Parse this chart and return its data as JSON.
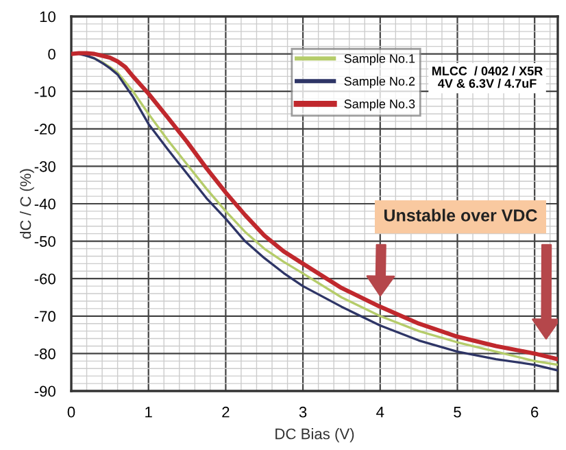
{
  "chart_data": {
    "type": "line",
    "xlabel": "DC Bias (V)",
    "ylabel": "dC / C (%)",
    "x": [
      0,
      0.1,
      0.2,
      0.3,
      0.4,
      0.5,
      0.6,
      0.7,
      0.8,
      1.0,
      1.25,
      1.5,
      1.75,
      2.0,
      2.25,
      2.5,
      2.75,
      3.0,
      3.5,
      4.0,
      4.5,
      5.0,
      5.5,
      6.0,
      6.3
    ],
    "series": [
      {
        "name": "Sample No.1",
        "color": "#b5cc6a",
        "values": [
          null,
          null,
          -0.5,
          -1.2,
          -2.2,
          -3.5,
          -5,
          -7.5,
          -10,
          -16,
          -23,
          -29.5,
          -36,
          -42,
          -47.5,
          -52,
          -55.5,
          -58.6,
          -65,
          -70,
          -74,
          -77,
          -79.5,
          -82,
          -83
        ]
      },
      {
        "name": "Sample No.2",
        "color": "#2e3566",
        "values": [
          0,
          0,
          -0.5,
          -1.2,
          -2.4,
          -3.8,
          -5.5,
          -8.5,
          -11.5,
          -18.7,
          -25.5,
          -32,
          -38.5,
          -44,
          -50,
          -54.5,
          -58.5,
          -62,
          -67.5,
          -72.5,
          -76.5,
          -79.5,
          -81.5,
          -83,
          -84.5
        ]
      },
      {
        "name": "Sample No.3",
        "color": "#c0282d",
        "values": [
          0,
          0.2,
          0.2,
          0,
          -0.5,
          -1,
          -2,
          -3.5,
          -6,
          -10.6,
          -17,
          -23.5,
          -30.5,
          -37,
          -43,
          -48.5,
          -52.7,
          -56,
          -62.5,
          -67.5,
          -72,
          -75.5,
          -78,
          -80,
          -81.5
        ]
      }
    ],
    "xlim": [
      0,
      6.3
    ],
    "xticks": [
      0,
      1,
      2,
      3,
      4,
      5,
      6
    ],
    "ylim": [
      -90,
      10
    ],
    "yticks": [
      -90,
      -80,
      -70,
      -60,
      -50,
      -40,
      -30,
      -20,
      -10,
      0,
      10
    ],
    "grid": true,
    "legend": "top right",
    "marker": "none",
    "line_style": "solid",
    "annotations": [
      "MLCC  / 0402 / X5R\n4V & 6.3V / 4.7uF",
      "Unstable over VDC"
    ]
  }
}
